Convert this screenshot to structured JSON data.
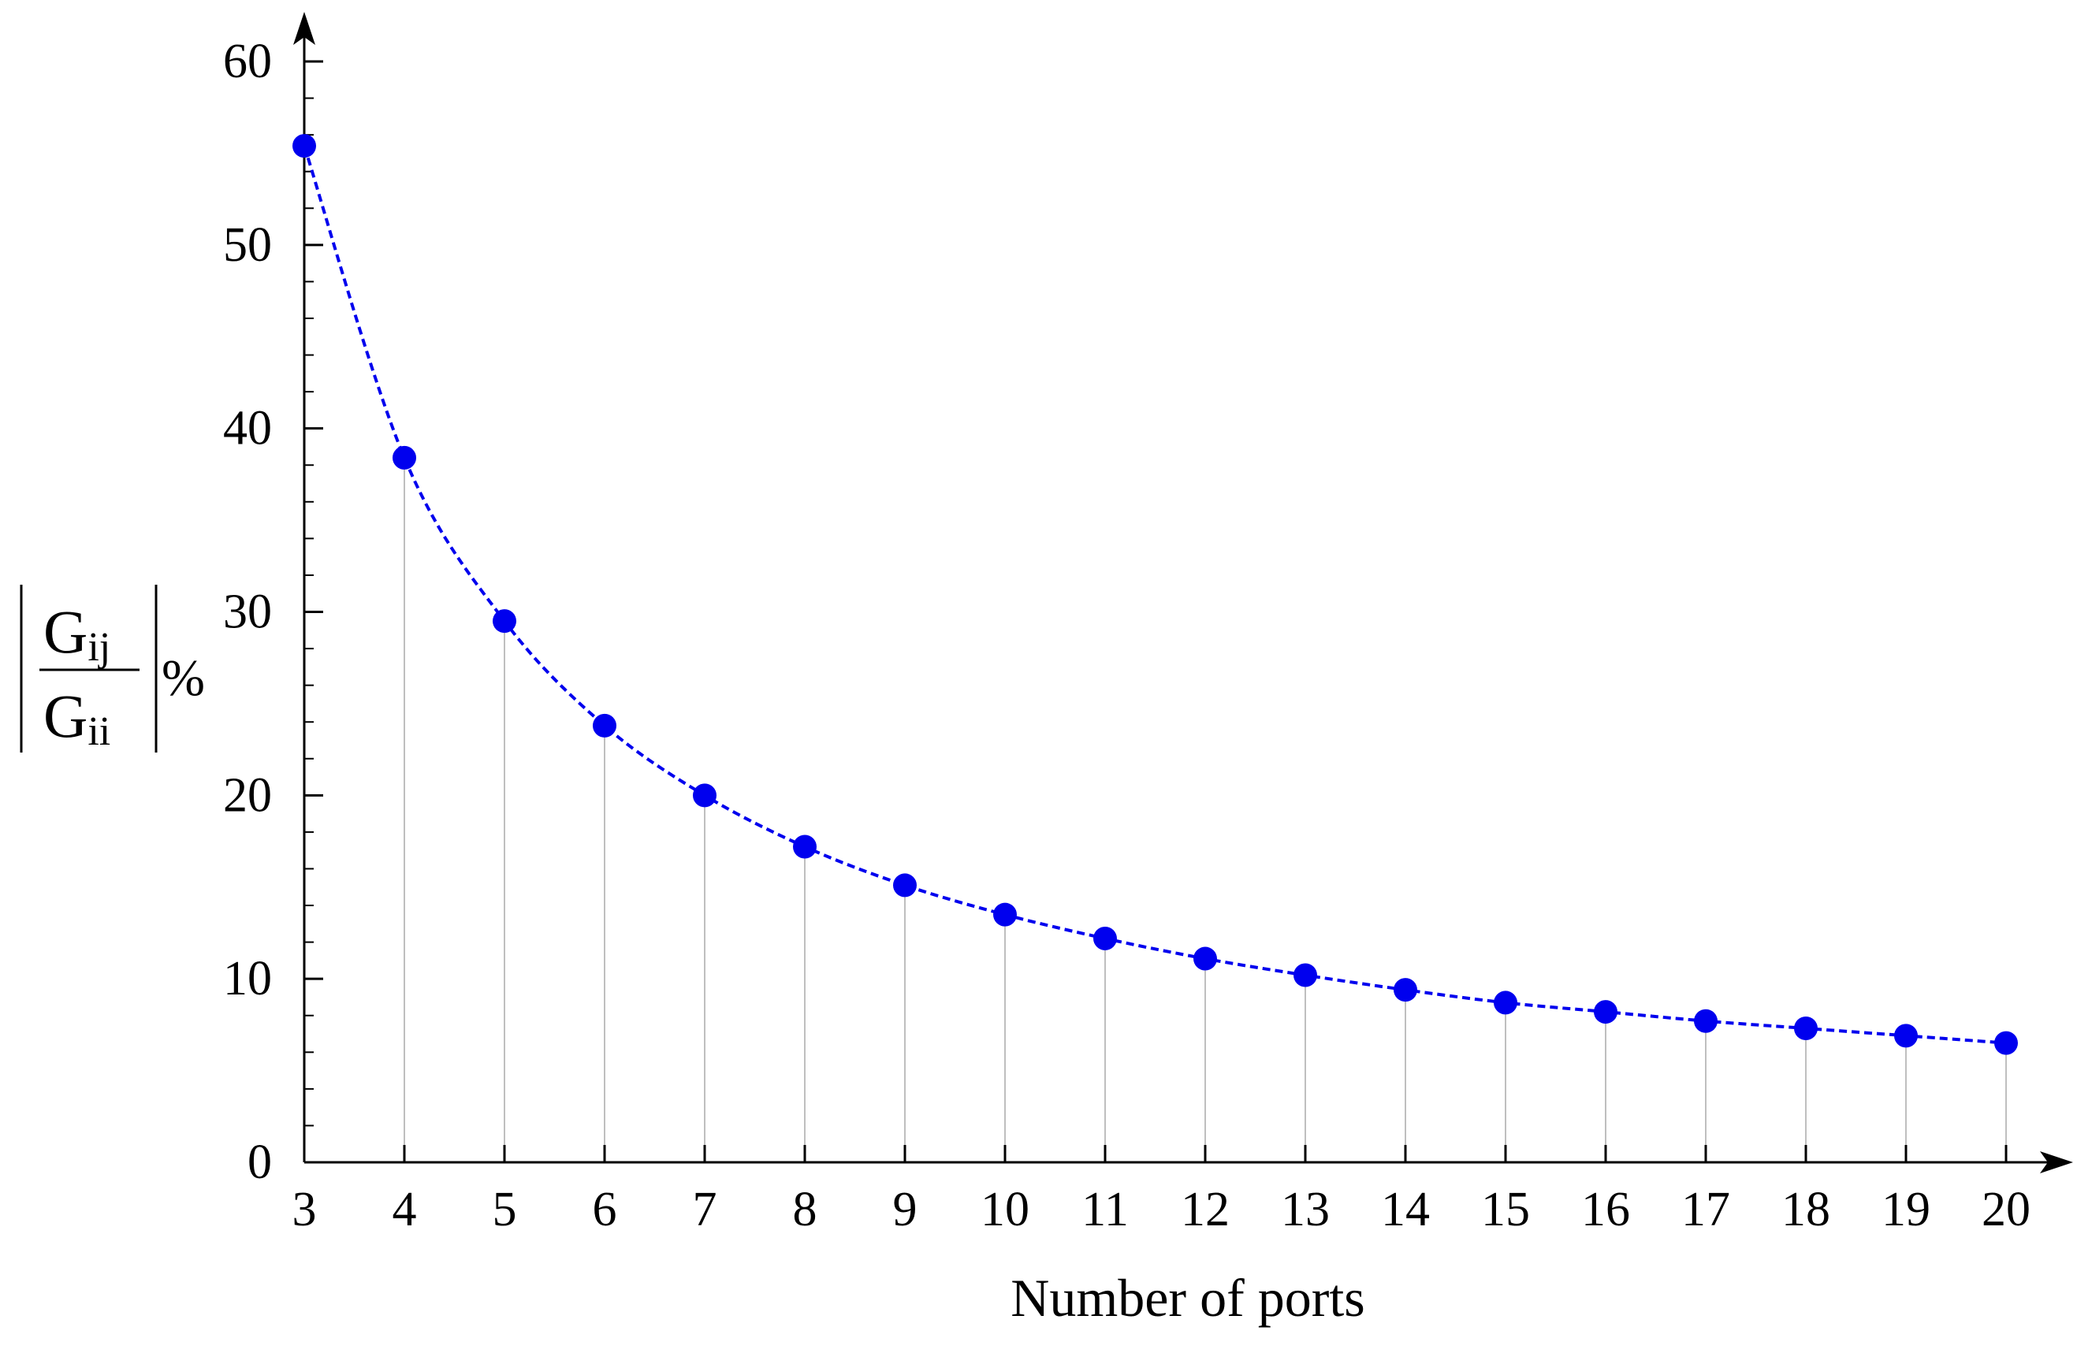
{
  "chart_data": {
    "type": "scatter",
    "xlabel": "Number of ports",
    "ylabel": {
      "numerator_main": "G",
      "numerator_sub": "ij",
      "denominator_main": "G",
      "denominator_sub": "ii",
      "suffix": "%"
    },
    "x": [
      3,
      4,
      5,
      6,
      7,
      8,
      9,
      10,
      11,
      12,
      13,
      14,
      15,
      16,
      17,
      18,
      19,
      20
    ],
    "x_ticks": [
      "3",
      "4",
      "5",
      "6",
      "7",
      "8",
      "9",
      "10",
      "11",
      "12",
      "13",
      "14",
      "15",
      "16",
      "17",
      "18",
      "19",
      "20"
    ],
    "y_ticks": [
      "0",
      "10",
      "20",
      "30",
      "40",
      "50",
      "60"
    ],
    "xlim": [
      3,
      20
    ],
    "ylim": [
      0,
      60
    ],
    "series": [
      {
        "values": [
          55.4,
          38.4,
          29.5,
          23.8,
          20.0,
          17.2,
          15.1,
          13.5,
          12.2,
          11.1,
          10.2,
          9.4,
          8.7,
          8.2,
          7.7,
          7.3,
          6.9,
          6.5
        ],
        "color": "#0000ee",
        "line_style": "dashed",
        "marker": "filled-circle",
        "drop_lines": true
      }
    ],
    "grid": false
  }
}
